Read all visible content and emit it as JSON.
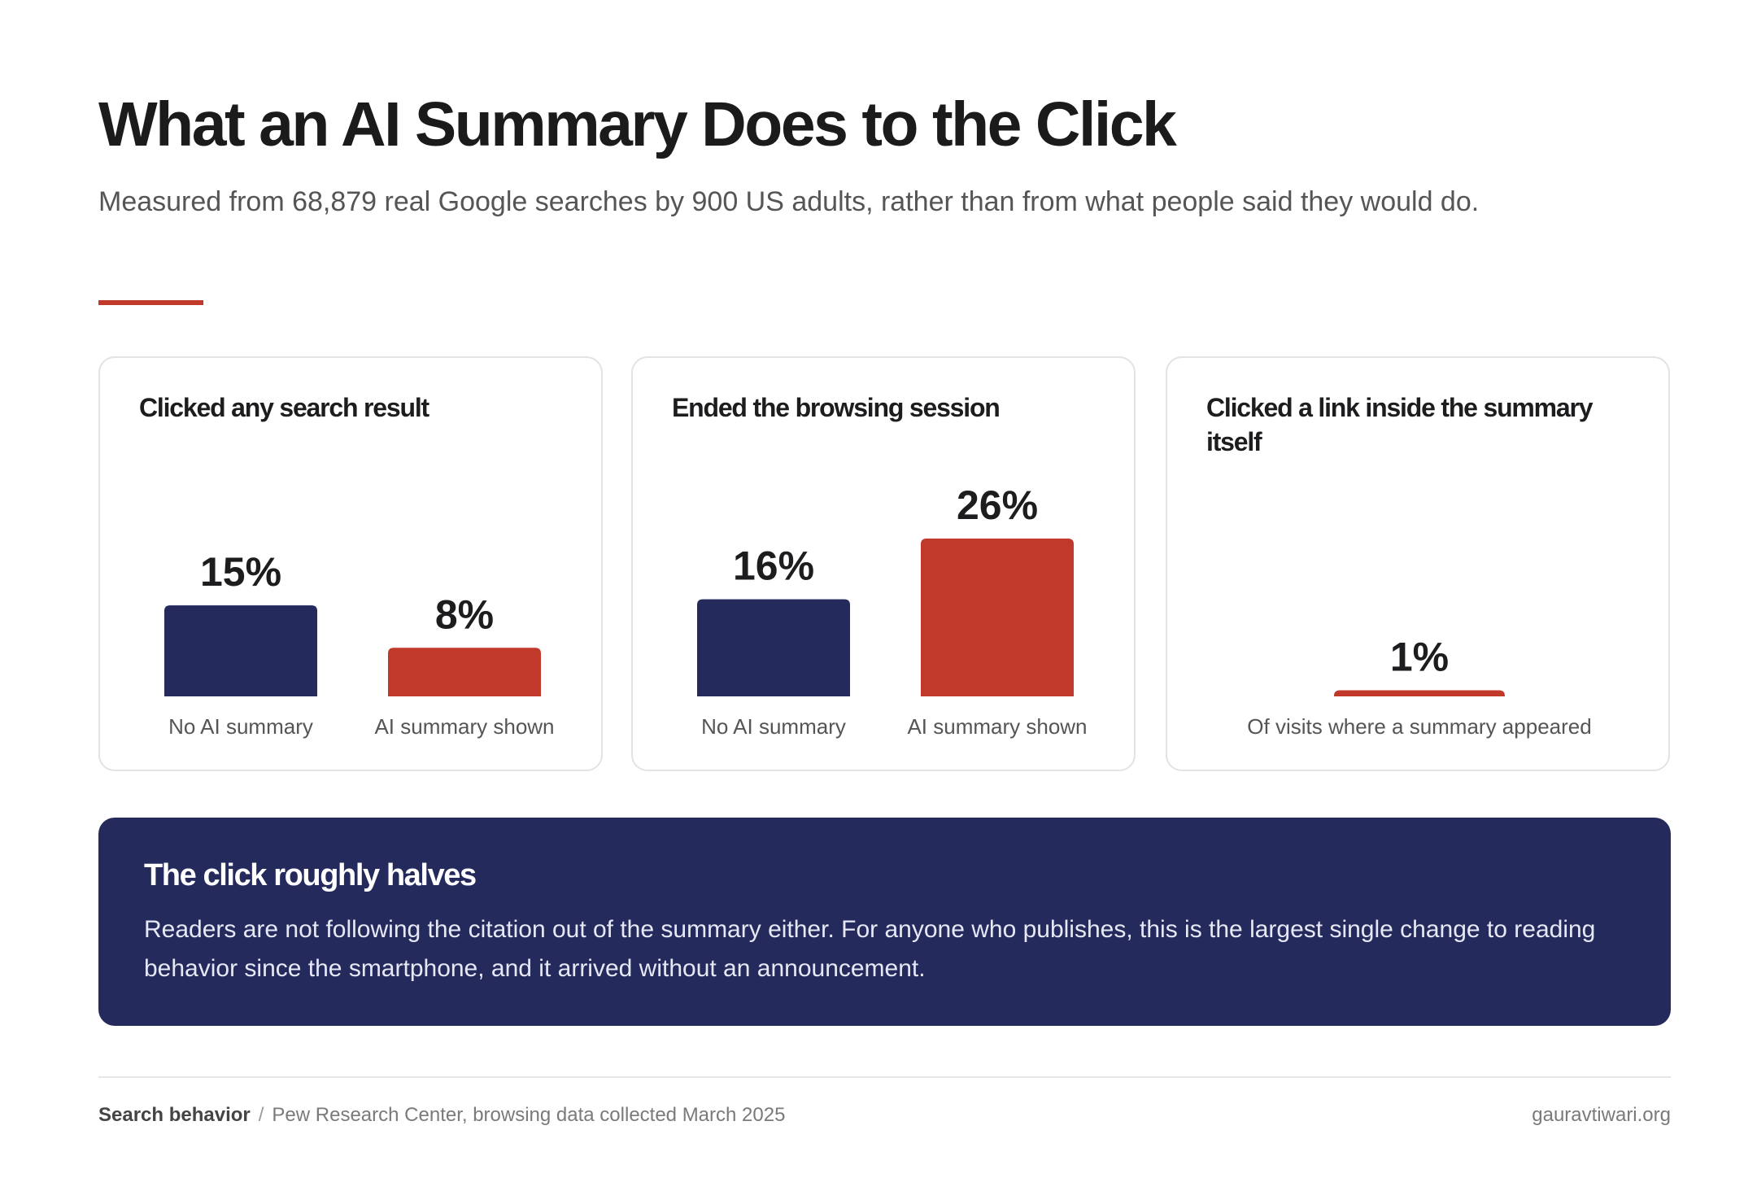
{
  "header": {
    "title": "What an AI Summary Does to the Click",
    "subtitle": "Measured from 68,879 real Google searches by 900 US adults, rather than from what people said they would do."
  },
  "colors": {
    "navy": "#252a5c",
    "red": "#c0392b",
    "accent": "#c0392b"
  },
  "chart_data": [
    {
      "type": "bar",
      "title": "Clicked any search result",
      "categories": [
        "No AI summary",
        "AI summary shown"
      ],
      "values": [
        15,
        8
      ],
      "value_labels": [
        "15%",
        "8%"
      ],
      "unit": "%",
      "ylim": [
        0,
        26
      ]
    },
    {
      "type": "bar",
      "title": "Ended the browsing session",
      "categories": [
        "No AI summary",
        "AI summary shown"
      ],
      "values": [
        16,
        26
      ],
      "value_labels": [
        "16%",
        "26%"
      ],
      "unit": "%",
      "ylim": [
        0,
        26
      ]
    },
    {
      "type": "bar",
      "title": "Clicked a link inside the summary itself",
      "categories": [
        "Of visits where a summary appeared"
      ],
      "values": [
        1
      ],
      "value_labels": [
        "1%"
      ],
      "unit": "%",
      "ylim": [
        0,
        26
      ]
    }
  ],
  "callout": {
    "title": "The click roughly halves",
    "body": "Readers are not following the citation out of the summary either. For anyone who publishes, this is the largest single change to reading behavior since the smartphone, and it arrived without an announcement."
  },
  "footer": {
    "topic": "Search behavior",
    "separator": "/",
    "source": "Pew Research Center, browsing data collected March 2025",
    "site": "gauravtiwari.org"
  }
}
